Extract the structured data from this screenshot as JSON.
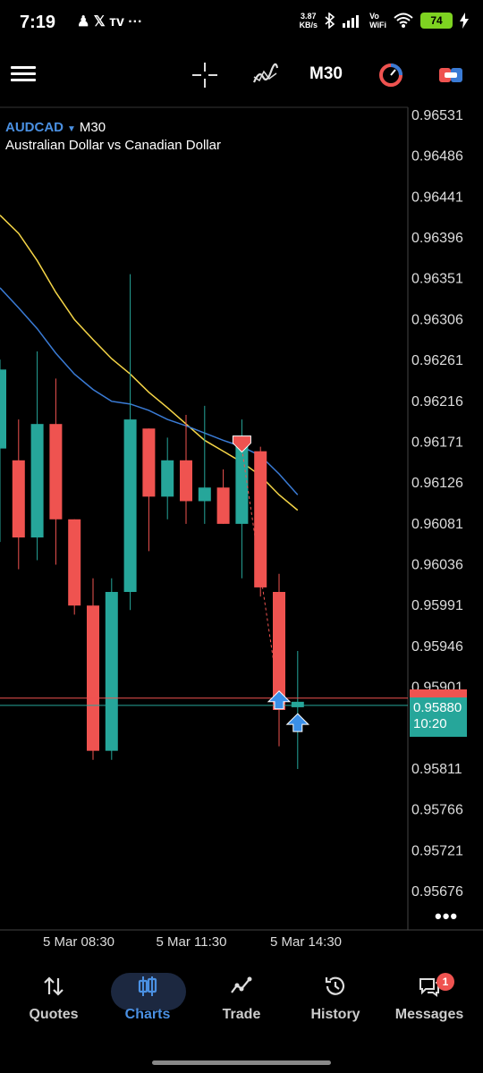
{
  "status": {
    "time": "7:19",
    "left_icons": "♟ 𝕏 ᴛᴠ ···",
    "net_speed_value": "3.87",
    "net_speed_unit": "KB/s",
    "volte_top": "Vo",
    "volte_bottom": "WiFi",
    "battery": "74"
  },
  "toolbar": {
    "timeframe": "M30"
  },
  "symbol": {
    "name": "AUDCAD",
    "caret": "▼",
    "timeframe": "M30",
    "description": "Australian Dollar vs Canadian Dollar"
  },
  "price_axis": [
    "0.96531",
    "0.96486",
    "0.96441",
    "0.96396",
    "0.96351",
    "0.96306",
    "0.96261",
    "0.96216",
    "0.96171",
    "0.96126",
    "0.96081",
    "0.96036",
    "0.95991",
    "0.95946",
    "0.95901",
    "0.95811",
    "0.95766",
    "0.95721",
    "0.95676"
  ],
  "time_axis": [
    "5 Mar 08:30",
    "5 Mar 11:30",
    "5 Mar 14:30"
  ],
  "current_price": {
    "bid": "0.95880",
    "countdown": "10:20",
    "ask_partial": "0.95888"
  },
  "more_label": "•••",
  "colors": {
    "bull": "#26a69a",
    "bear": "#ef5350",
    "accent": "#4a90e2",
    "ma_fast": "#f5d547",
    "ma_slow": "#3a7bd5"
  },
  "chart_data": {
    "type": "candlestick",
    "ylim": [
      0.9565,
      0.9655
    ],
    "candles": [
      {
        "o": 0.96163,
        "h": 0.96261,
        "l": 0.9606,
        "c": 0.9625
      },
      {
        "o": 0.9615,
        "h": 0.96195,
        "l": 0.9603,
        "c": 0.96065
      },
      {
        "o": 0.96065,
        "h": 0.9627,
        "l": 0.9604,
        "c": 0.9619
      },
      {
        "o": 0.9619,
        "h": 0.9624,
        "l": 0.96035,
        "c": 0.96085
      },
      {
        "o": 0.96085,
        "h": 0.96085,
        "l": 0.9598,
        "c": 0.9599
      },
      {
        "o": 0.9599,
        "h": 0.9602,
        "l": 0.9582,
        "c": 0.9583
      },
      {
        "o": 0.9583,
        "h": 0.9602,
        "l": 0.9582,
        "c": 0.96005
      },
      {
        "o": 0.96005,
        "h": 0.96355,
        "l": 0.95985,
        "c": 0.96195
      },
      {
        "o": 0.96185,
        "h": 0.96185,
        "l": 0.9605,
        "c": 0.9611
      },
      {
        "o": 0.9611,
        "h": 0.96175,
        "l": 0.96085,
        "c": 0.9615
      },
      {
        "o": 0.9615,
        "h": 0.962,
        "l": 0.9608,
        "c": 0.96105
      },
      {
        "o": 0.96105,
        "h": 0.9621,
        "l": 0.9608,
        "c": 0.9612
      },
      {
        "o": 0.9612,
        "h": 0.9614,
        "l": 0.9608,
        "c": 0.9608
      },
      {
        "o": 0.9608,
        "h": 0.96195,
        "l": 0.9602,
        "c": 0.96175
      },
      {
        "o": 0.9616,
        "h": 0.96165,
        "l": 0.96,
        "c": 0.9601
      },
      {
        "o": 0.96005,
        "h": 0.96025,
        "l": 0.95835,
        "c": 0.95875
      },
      {
        "o": 0.95878,
        "h": 0.9594,
        "l": 0.9581,
        "c": 0.95884
      }
    ],
    "ma_fast": [
      0.96266,
      0.96222,
      0.96186,
      0.96156,
      0.96126,
      0.96096,
      0.9606,
      0.9603,
      0.96004,
      0.95986,
      0.95966,
      0.95951,
      0.95934,
      0.95914,
      0.95896,
      0.95884,
      0.95874
    ],
    "ma_slow": [
      0.9616,
      0.96116,
      0.9608,
      0.9605,
      0.9602,
      0.95988,
      0.9597,
      0.9596,
      0.95956,
      0.9595,
      0.95946,
      0.9594,
      0.95932,
      0.95922,
      0.9591,
      0.95898,
      0.9589
    ],
    "bid_line": 0.9588,
    "ask_line": 0.95888,
    "trades": [
      {
        "type": "sell",
        "price": 0.96163,
        "candle": 13
      },
      {
        "type": "buy",
        "price": 0.95888,
        "candle": 15
      },
      {
        "type": "buy",
        "price": 0.95863,
        "candle": 16
      }
    ]
  },
  "nav": {
    "quotes": "Quotes",
    "charts": "Charts",
    "trade": "Trade",
    "history": "History",
    "messages": "Messages",
    "messages_badge": "1"
  }
}
